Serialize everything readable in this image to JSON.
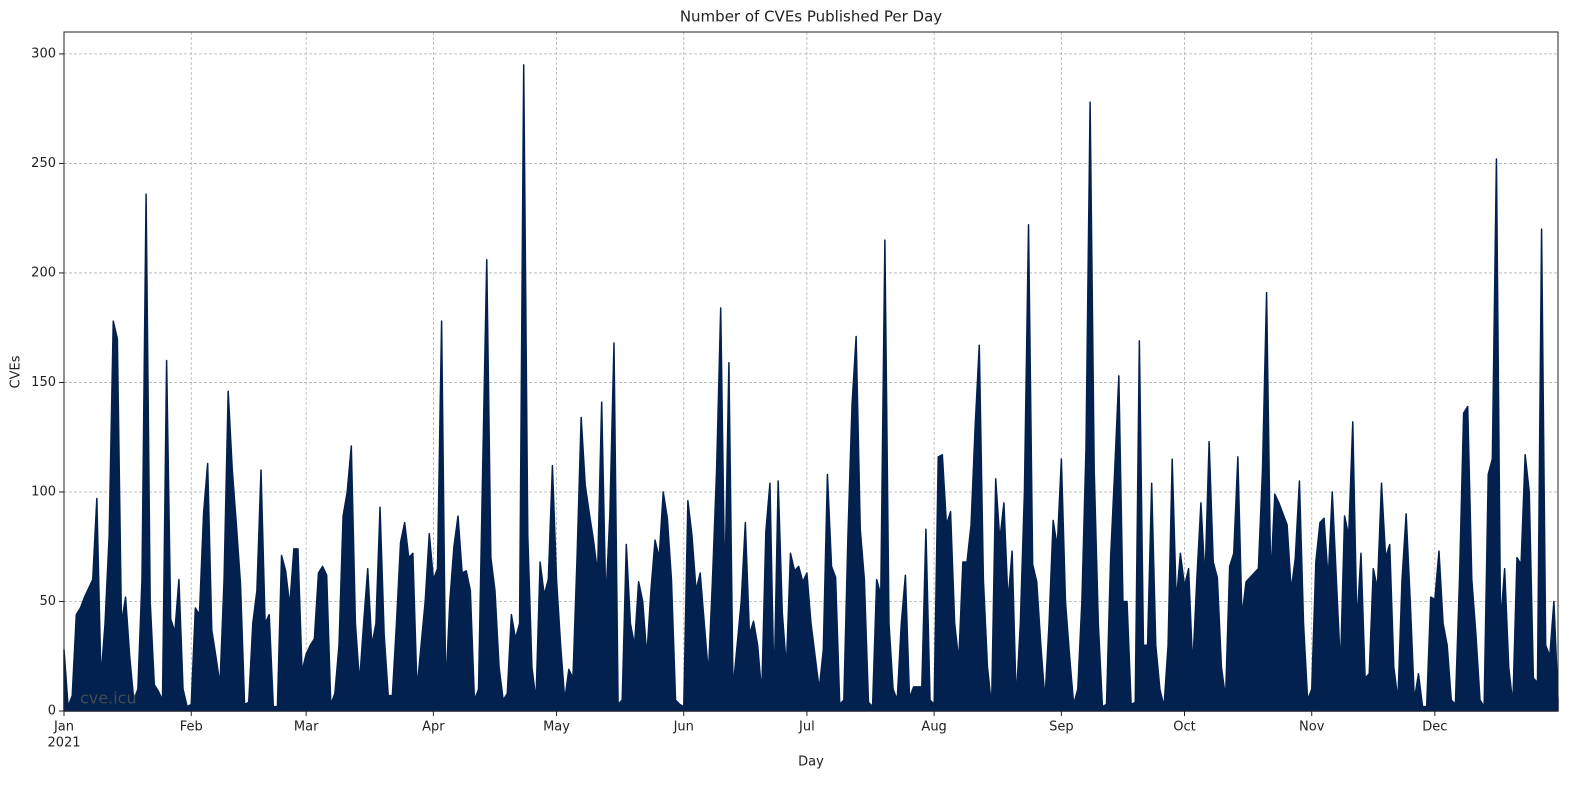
{
  "chart_data": {
    "type": "area",
    "title": "Number of CVEs Published Per Day",
    "xlabel": "Day",
    "ylabel": "CVEs",
    "watermark": "cve.icu",
    "color": "#03214e",
    "grid": true,
    "x": [
      "2021-01-01",
      "2021-01-02",
      "2021-01-03",
      "2021-01-04",
      "2021-01-05",
      "2021-01-06",
      "2021-01-07",
      "2021-01-08",
      "2021-01-09",
      "2021-01-10",
      "2021-01-11",
      "2021-01-12",
      "2021-01-13",
      "2021-01-14",
      "2021-01-15",
      "2021-01-16",
      "2021-01-17",
      "2021-01-18",
      "2021-01-19",
      "2021-01-20",
      "2021-01-21",
      "2021-01-22",
      "2021-01-23",
      "2021-01-24",
      "2021-01-25",
      "2021-01-26",
      "2021-01-27",
      "2021-01-28",
      "2021-01-29",
      "2021-01-30",
      "2021-01-31",
      "2021-02-01",
      "2021-02-02",
      "2021-02-03",
      "2021-02-04",
      "2021-02-05",
      "2021-02-06",
      "2021-02-07",
      "2021-02-08",
      "2021-02-09",
      "2021-02-10",
      "2021-02-11",
      "2021-02-12",
      "2021-02-13",
      "2021-02-14",
      "2021-02-15",
      "2021-02-16",
      "2021-02-17",
      "2021-02-18",
      "2021-02-19",
      "2021-02-20",
      "2021-02-21",
      "2021-02-22",
      "2021-02-23",
      "2021-02-24",
      "2021-02-25",
      "2021-02-26",
      "2021-02-27",
      "2021-02-28",
      "2021-03-01",
      "2021-03-02",
      "2021-03-03",
      "2021-03-04",
      "2021-03-05",
      "2021-03-06",
      "2021-03-07",
      "2021-03-08",
      "2021-03-09",
      "2021-03-10",
      "2021-03-11",
      "2021-03-12",
      "2021-03-13",
      "2021-03-14",
      "2021-03-15",
      "2021-03-16",
      "2021-03-17",
      "2021-03-18",
      "2021-03-19",
      "2021-03-20",
      "2021-03-21",
      "2021-03-22",
      "2021-03-23",
      "2021-03-24",
      "2021-03-25",
      "2021-03-26",
      "2021-03-27",
      "2021-03-28",
      "2021-03-29",
      "2021-03-30",
      "2021-03-31",
      "2021-04-01",
      "2021-04-02",
      "2021-04-03",
      "2021-04-04",
      "2021-04-05",
      "2021-04-06",
      "2021-04-07",
      "2021-04-08",
      "2021-04-09",
      "2021-04-10",
      "2021-04-11",
      "2021-04-12",
      "2021-04-13",
      "2021-04-14",
      "2021-04-15",
      "2021-04-16",
      "2021-04-17",
      "2021-04-18",
      "2021-04-19",
      "2021-04-20",
      "2021-04-21",
      "2021-04-22",
      "2021-04-23",
      "2021-04-24",
      "2021-04-25",
      "2021-04-26",
      "2021-04-27",
      "2021-04-28",
      "2021-04-29",
      "2021-04-30",
      "2021-05-01",
      "2021-05-02",
      "2021-05-03",
      "2021-05-04",
      "2021-05-05",
      "2021-05-06",
      "2021-05-07",
      "2021-05-08",
      "2021-05-09",
      "2021-05-10",
      "2021-05-11",
      "2021-05-12",
      "2021-05-13",
      "2021-05-14",
      "2021-05-15",
      "2021-05-16",
      "2021-05-17",
      "2021-05-18",
      "2021-05-19",
      "2021-05-20",
      "2021-05-21",
      "2021-05-22",
      "2021-05-23",
      "2021-05-24",
      "2021-05-25",
      "2021-05-26",
      "2021-05-27",
      "2021-05-28",
      "2021-05-29",
      "2021-05-30",
      "2021-05-31",
      "2021-06-01",
      "2021-06-02",
      "2021-06-03",
      "2021-06-04",
      "2021-06-05",
      "2021-06-06",
      "2021-06-07",
      "2021-06-08",
      "2021-06-09",
      "2021-06-10",
      "2021-06-11",
      "2021-06-12",
      "2021-06-13",
      "2021-06-14",
      "2021-06-15",
      "2021-06-16",
      "2021-06-17",
      "2021-06-18",
      "2021-06-19",
      "2021-06-20",
      "2021-06-21",
      "2021-06-22",
      "2021-06-23",
      "2021-06-24",
      "2021-06-25",
      "2021-06-26",
      "2021-06-27",
      "2021-06-28",
      "2021-06-29",
      "2021-06-30",
      "2021-07-01",
      "2021-07-02",
      "2021-07-03",
      "2021-07-04",
      "2021-07-05",
      "2021-07-06",
      "2021-07-07",
      "2021-07-08",
      "2021-07-09",
      "2021-07-10",
      "2021-07-11",
      "2021-07-12",
      "2021-07-13",
      "2021-07-14",
      "2021-07-15",
      "2021-07-16",
      "2021-07-17",
      "2021-07-18",
      "2021-07-19",
      "2021-07-20",
      "2021-07-21",
      "2021-07-22",
      "2021-07-23",
      "2021-07-24",
      "2021-07-25",
      "2021-07-26",
      "2021-07-27",
      "2021-07-28",
      "2021-07-29",
      "2021-07-30",
      "2021-07-31",
      "2021-08-01",
      "2021-08-02",
      "2021-08-03",
      "2021-08-04",
      "2021-08-05",
      "2021-08-06",
      "2021-08-07",
      "2021-08-08",
      "2021-08-09",
      "2021-08-10",
      "2021-08-11",
      "2021-08-12",
      "2021-08-13",
      "2021-08-14",
      "2021-08-15",
      "2021-08-16",
      "2021-08-17",
      "2021-08-18",
      "2021-08-19",
      "2021-08-20",
      "2021-08-21",
      "2021-08-22",
      "2021-08-23",
      "2021-08-24",
      "2021-08-25",
      "2021-08-26",
      "2021-08-27",
      "2021-08-28",
      "2021-08-29",
      "2021-08-30",
      "2021-08-31",
      "2021-09-01",
      "2021-09-02",
      "2021-09-03",
      "2021-09-04",
      "2021-09-05",
      "2021-09-06",
      "2021-09-07",
      "2021-09-08",
      "2021-09-09",
      "2021-09-10",
      "2021-09-11",
      "2021-09-12",
      "2021-09-13",
      "2021-09-14",
      "2021-09-15",
      "2021-09-16",
      "2021-09-17",
      "2021-09-18",
      "2021-09-19",
      "2021-09-20",
      "2021-09-21",
      "2021-09-22",
      "2021-09-23",
      "2021-09-24",
      "2021-09-25",
      "2021-09-26",
      "2021-09-27",
      "2021-09-28",
      "2021-09-29",
      "2021-09-30",
      "2021-10-01",
      "2021-10-02",
      "2021-10-03",
      "2021-10-04",
      "2021-10-05",
      "2021-10-06",
      "2021-10-07",
      "2021-10-08",
      "2021-10-09",
      "2021-10-10",
      "2021-10-11",
      "2021-10-12",
      "2021-10-13",
      "2021-10-14",
      "2021-10-15",
      "2021-10-16",
      "2021-10-17",
      "2021-10-18",
      "2021-10-19",
      "2021-10-20",
      "2021-10-21",
      "2021-10-22",
      "2021-10-23",
      "2021-10-24",
      "2021-10-25",
      "2021-10-26",
      "2021-10-27",
      "2021-10-28",
      "2021-10-29",
      "2021-10-30",
      "2021-10-31",
      "2021-11-01",
      "2021-11-02",
      "2021-11-03",
      "2021-11-04",
      "2021-11-05",
      "2021-11-06",
      "2021-11-07",
      "2021-11-08",
      "2021-11-09",
      "2021-11-10",
      "2021-11-11",
      "2021-11-12",
      "2021-11-13",
      "2021-11-14",
      "2021-11-15",
      "2021-11-16",
      "2021-11-17",
      "2021-11-18",
      "2021-11-19",
      "2021-11-20",
      "2021-11-21",
      "2021-11-22",
      "2021-11-23",
      "2021-11-24",
      "2021-11-25",
      "2021-11-26",
      "2021-11-27",
      "2021-11-28",
      "2021-11-29",
      "2021-11-30",
      "2021-12-01",
      "2021-12-02",
      "2021-12-03",
      "2021-12-04",
      "2021-12-05",
      "2021-12-06",
      "2021-12-07",
      "2021-12-08",
      "2021-12-09",
      "2021-12-10",
      "2021-12-11",
      "2021-12-12",
      "2021-12-13",
      "2021-12-14",
      "2021-12-15",
      "2021-12-16",
      "2021-12-17",
      "2021-12-18",
      "2021-12-19",
      "2021-12-20",
      "2021-12-21",
      "2021-12-22",
      "2021-12-23",
      "2021-12-24",
      "2021-12-25",
      "2021-12-26",
      "2021-12-27",
      "2021-12-28",
      "2021-12-29",
      "2021-12-30",
      "2021-12-31"
    ],
    "values": [
      28,
      2,
      7,
      44,
      47,
      52,
      56,
      60,
      97,
      15,
      40,
      80,
      178,
      170,
      40,
      52,
      25,
      5,
      10,
      60,
      236,
      50,
      12,
      9,
      5,
      160,
      42,
      36,
      60,
      10,
      2,
      3,
      47,
      44,
      90,
      113,
      37,
      25,
      12,
      60,
      146,
      110,
      85,
      58,
      3,
      4,
      40,
      55,
      110,
      40,
      44,
      2,
      2,
      71,
      64,
      48,
      74,
      74,
      18,
      26,
      30,
      33,
      63,
      66,
      62,
      3,
      8,
      30,
      89,
      100,
      121,
      40,
      13,
      40,
      65,
      30,
      40,
      93,
      35,
      7,
      7,
      40,
      77,
      86,
      70,
      72,
      10,
      30,
      50,
      81,
      60,
      65,
      178,
      10,
      50,
      75,
      89,
      63,
      64,
      55,
      5,
      10,
      110,
      206,
      70,
      55,
      20,
      5,
      8,
      44,
      33,
      40,
      295,
      80,
      20,
      5,
      68,
      53,
      60,
      112,
      60,
      30,
      5,
      19,
      15,
      70,
      134,
      103,
      90,
      78,
      63,
      141,
      50,
      90,
      168,
      3,
      5,
      76,
      40,
      30,
      59,
      50,
      25,
      55,
      78,
      70,
      100,
      88,
      60,
      5,
      3,
      2,
      96,
      80,
      55,
      63,
      40,
      17,
      60,
      110,
      184,
      55,
      159,
      10,
      30,
      50,
      86,
      35,
      41,
      30,
      8,
      82,
      104,
      10,
      105,
      45,
      20,
      72,
      64,
      66,
      59,
      63,
      40,
      25,
      10,
      28,
      108,
      66,
      61,
      3,
      5,
      80,
      140,
      171,
      83,
      60,
      4,
      2,
      60,
      53,
      215,
      40,
      10,
      5,
      40,
      62,
      6,
      11,
      11,
      11,
      83,
      5,
      3,
      116,
      117,
      85,
      91,
      40,
      23,
      68,
      68,
      85,
      130,
      167,
      60,
      20,
      2,
      106,
      78,
      95,
      50,
      73,
      5,
      40,
      100,
      222,
      67,
      59,
      30,
      5,
      40,
      87,
      75,
      115,
      50,
      25,
      3,
      10,
      50,
      120,
      278,
      110,
      40,
      2,
      3,
      70,
      110,
      153,
      50,
      50,
      3,
      4,
      169,
      30,
      30,
      104,
      30,
      10,
      2,
      30,
      115,
      50,
      72,
      57,
      65,
      20,
      60,
      95,
      60,
      123,
      68,
      61,
      20,
      6,
      66,
      72,
      116,
      43,
      59,
      61,
      63,
      65,
      110,
      191,
      60,
      99,
      95,
      90,
      85,
      55,
      70,
      105,
      40,
      5,
      10,
      68,
      86,
      88,
      60,
      100,
      60,
      20,
      89,
      80,
      132,
      40,
      72,
      15,
      17,
      65,
      56,
      104,
      70,
      76,
      20,
      5,
      60,
      90,
      50,
      5,
      17,
      2,
      2,
      52,
      51,
      73,
      40,
      30,
      5,
      3,
      60,
      136,
      139,
      60,
      35,
      5,
      2,
      108,
      115,
      252,
      40,
      65,
      20,
      3,
      70,
      67,
      117,
      100,
      15,
      13,
      220,
      30,
      25,
      50,
      5
    ],
    "xlim": [
      "2021-01-01",
      "2021-12-31"
    ],
    "xticks": [
      {
        "value": "2021-01-01",
        "label": "Jan"
      },
      {
        "value": "2021-02-01",
        "label": "Feb"
      },
      {
        "value": "2021-03-01",
        "label": "Mar"
      },
      {
        "value": "2021-04-01",
        "label": "Apr"
      },
      {
        "value": "2021-05-01",
        "label": "May"
      },
      {
        "value": "2021-06-01",
        "label": "Jun"
      },
      {
        "value": "2021-07-01",
        "label": "Jul"
      },
      {
        "value": "2021-08-01",
        "label": "Aug"
      },
      {
        "value": "2021-09-01",
        "label": "Sep"
      },
      {
        "value": "2021-10-01",
        "label": "Oct"
      },
      {
        "value": "2021-11-01",
        "label": "Nov"
      },
      {
        "value": "2021-12-01",
        "label": "Dec"
      }
    ],
    "x_year_label": "2021",
    "ylim": [
      0,
      310
    ],
    "yticks": [
      0,
      50,
      100,
      150,
      200,
      250,
      300
    ]
  }
}
